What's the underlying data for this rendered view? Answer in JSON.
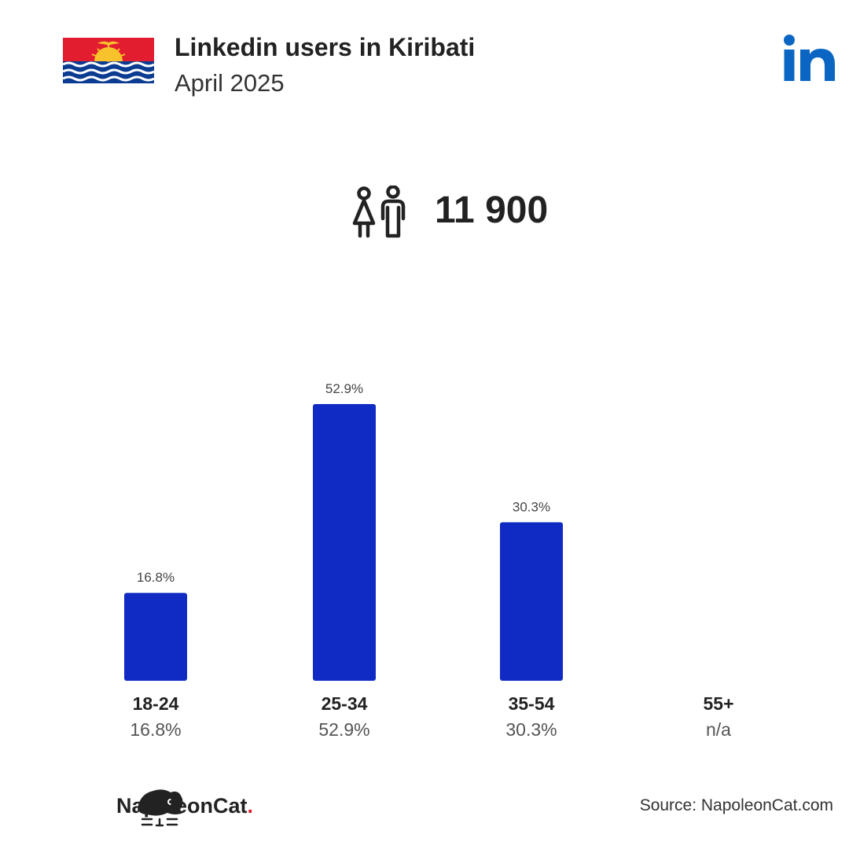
{
  "header": {
    "title": "Linkedin users in Kiribati",
    "subtitle": "April 2025",
    "flag_icon": "kiribati-flag-icon",
    "logo_icon": "linkedin-logo-icon"
  },
  "total": {
    "icon": "users-icon",
    "value": "11 900"
  },
  "chart_data": {
    "type": "bar",
    "categories": [
      "18-24",
      "25-34",
      "35-54",
      "55+"
    ],
    "values": [
      16.8,
      52.9,
      30.3,
      null
    ],
    "value_labels": [
      "16.8%",
      "52.9%",
      "30.3%",
      "n/a"
    ],
    "bar_color": "#0f2bc4",
    "ylim": [
      0,
      52.9
    ],
    "grid": false,
    "legend": "none"
  },
  "footer": {
    "brand_name": "NapoleonCat",
    "brand_dot": ".",
    "brand_icon": "napoleoncat-logo-icon",
    "source": "Source: NapoleonCat.com"
  }
}
